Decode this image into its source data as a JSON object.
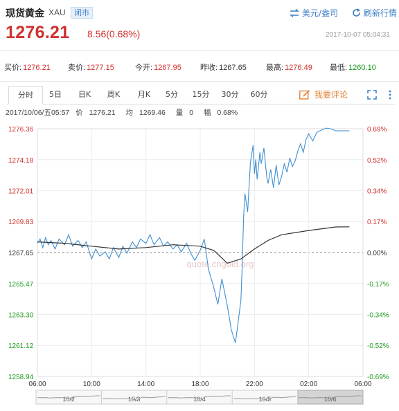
{
  "header": {
    "title": "现货黄金",
    "symbol": "XAU",
    "status": "闭市",
    "unit_toggle": "美元/盎司",
    "refresh": "刷新行情",
    "price": "1276.21",
    "change": "8.56(0.68%)",
    "timestamp": "2017-10-07 05:04:31"
  },
  "stats": [
    {
      "label": "买价:",
      "value": "1276.21",
      "color": "red"
    },
    {
      "label": "卖价:",
      "value": "1277.15",
      "color": "red"
    },
    {
      "label": "今开:",
      "value": "1267.95",
      "color": "red"
    },
    {
      "label": "昨收:",
      "value": "1267.65",
      "color": "plain"
    },
    {
      "label": "最高:",
      "value": "1276.49",
      "color": "red"
    },
    {
      "label": "最低:",
      "value": "1260.10",
      "color": "green"
    }
  ],
  "tabs": [
    "分时",
    "5日",
    "日K",
    "周K",
    "月K",
    "5分",
    "15分",
    "30分",
    "60分"
  ],
  "comment_label": "我要评论",
  "info": {
    "date": "2017/10/06/五05:57",
    "price_label": "价",
    "price": "1276.21",
    "avg_label": "均",
    "avg": "1269.46",
    "vol_label": "量",
    "vol": "0",
    "amp_label": "幅",
    "amp": "0.68%"
  },
  "watermark": {
    "text": "quote.cngold.org"
  },
  "colors": {
    "up": "#d0312d",
    "down": "#1a9a1a",
    "line": "#3f8fd2",
    "avg": "#333333"
  },
  "chart_data": {
    "type": "line",
    "x_ticks": [
      "06:00",
      "10:00",
      "14:00",
      "18:00",
      "22:00",
      "02:00",
      "06:00"
    ],
    "y_ticks_left": [
      "1276.36",
      "1274.18",
      "1272.01",
      "1269.83",
      "1267.65",
      "1265.47",
      "1263.30",
      "1261.12",
      "1258.94"
    ],
    "y_ticks_right": [
      "0.69%",
      "0.52%",
      "0.34%",
      "0.17%",
      "0.00%",
      "-0.17%",
      "-0.34%",
      "-0.52%",
      "-0.69%"
    ],
    "ylim": [
      1258.94,
      1276.36
    ],
    "baseline": 1267.65,
    "series": [
      {
        "role": "price",
        "x_hours": [
          0,
          0.2,
          0.4,
          0.6,
          0.8,
          1,
          1.3,
          1.6,
          2,
          2.3,
          2.6,
          3,
          3.3,
          3.6,
          4,
          4.3,
          4.6,
          5,
          5.3,
          5.6,
          6,
          6.3,
          6.6,
          7,
          7.3,
          7.6,
          8,
          8.3,
          8.6,
          9,
          9.3,
          9.6,
          10,
          10.3,
          10.6,
          11,
          11.3,
          11.6,
          12,
          12.3,
          12.6,
          13,
          13.3,
          13.6,
          14,
          14.3,
          14.6,
          15,
          15.1,
          15.2,
          15.3,
          15.5,
          15.7,
          15.9,
          16,
          16.1,
          16.2,
          16.4,
          16.5,
          16.7,
          16.9,
          17,
          17.2,
          17.4,
          17.6,
          17.8,
          18,
          18.2,
          18.4,
          18.6,
          18.8,
          19,
          19.2,
          19.4,
          19.6,
          19.8,
          20,
          20.3,
          20.6,
          21,
          21.3,
          21.6,
          22,
          22.5,
          23
        ],
        "values": [
          1268.3,
          1268.6,
          1268.0,
          1268.7,
          1268.2,
          1268.5,
          1267.9,
          1268.6,
          1268.2,
          1268.9,
          1268.1,
          1268.5,
          1268.0,
          1268.4,
          1267.2,
          1267.9,
          1267.4,
          1267.7,
          1267.2,
          1268.0,
          1267.3,
          1268.1,
          1267.6,
          1268.4,
          1268.0,
          1268.6,
          1268.3,
          1268.9,
          1268.2,
          1268.7,
          1268.1,
          1268.4,
          1267.9,
          1268.2,
          1267.7,
          1268.3,
          1267.6,
          1267.1,
          1267.8,
          1268.6,
          1266.5,
          1265.2,
          1264.0,
          1265.8,
          1263.9,
          1262.2,
          1261.3,
          1264.3,
          1266.8,
          1270.2,
          1271.8,
          1270.5,
          1274.0,
          1275.2,
          1273.2,
          1274.2,
          1272.8,
          1274.7,
          1273.9,
          1275.0,
          1273.0,
          1272.5,
          1273.5,
          1272.2,
          1273.8,
          1272.4,
          1273.0,
          1273.9,
          1273.3,
          1274.3,
          1273.7,
          1274.1,
          1274.8,
          1275.3,
          1274.7,
          1275.6,
          1276.0,
          1275.5,
          1276.1,
          1276.3,
          1276.4,
          1276.36,
          1276.21,
          1276.21,
          1276.21
        ],
        "color": "#3f8fd2"
      },
      {
        "role": "average",
        "x_hours": [
          0,
          2,
          4,
          6,
          8,
          10,
          12,
          13,
          14,
          15,
          16,
          17,
          18,
          20,
          22,
          23
        ],
        "values": [
          1268.4,
          1268.3,
          1268.1,
          1267.9,
          1268.0,
          1268.2,
          1268.1,
          1267.8,
          1266.9,
          1267.2,
          1267.9,
          1268.5,
          1268.9,
          1269.2,
          1269.45,
          1269.46
        ],
        "color": "#333333"
      }
    ],
    "navigator_labels": [
      "10/2",
      "10/3",
      "10/4",
      "10/5",
      "10/6"
    ],
    "xlabel": "",
    "ylabel": ""
  }
}
